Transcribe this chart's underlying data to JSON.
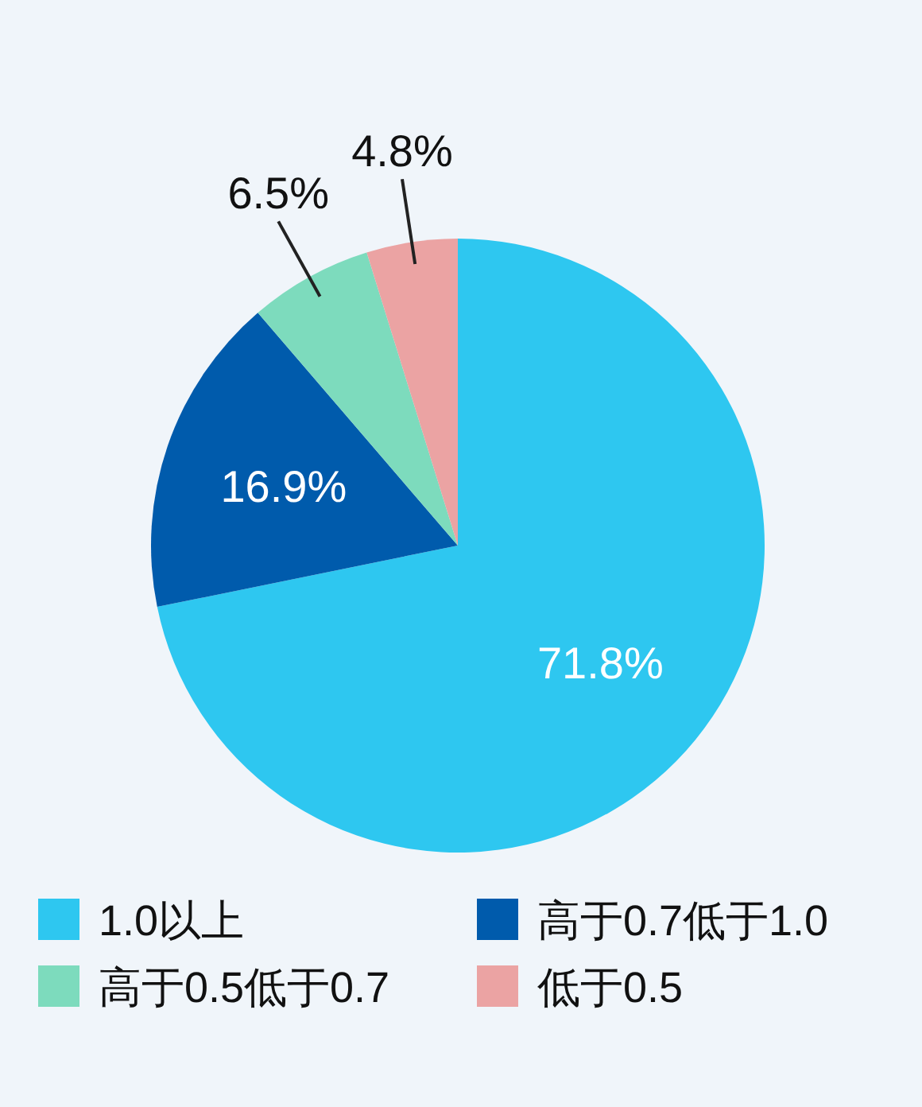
{
  "chart_data": {
    "type": "pie",
    "categories": [
      "1.0以上",
      "高于0.7低于1.0",
      "高于0.5低于0.7",
      "低于0.5"
    ],
    "values": [
      71.8,
      16.9,
      6.5,
      4.8
    ],
    "value_labels": [
      "71.8%",
      "16.9%",
      "6.5%",
      "4.8%"
    ],
    "colors": [
      "#2ec7f0",
      "#005bac",
      "#7ddbbd",
      "#eba3a3"
    ],
    "legend": "bottom"
  }
}
